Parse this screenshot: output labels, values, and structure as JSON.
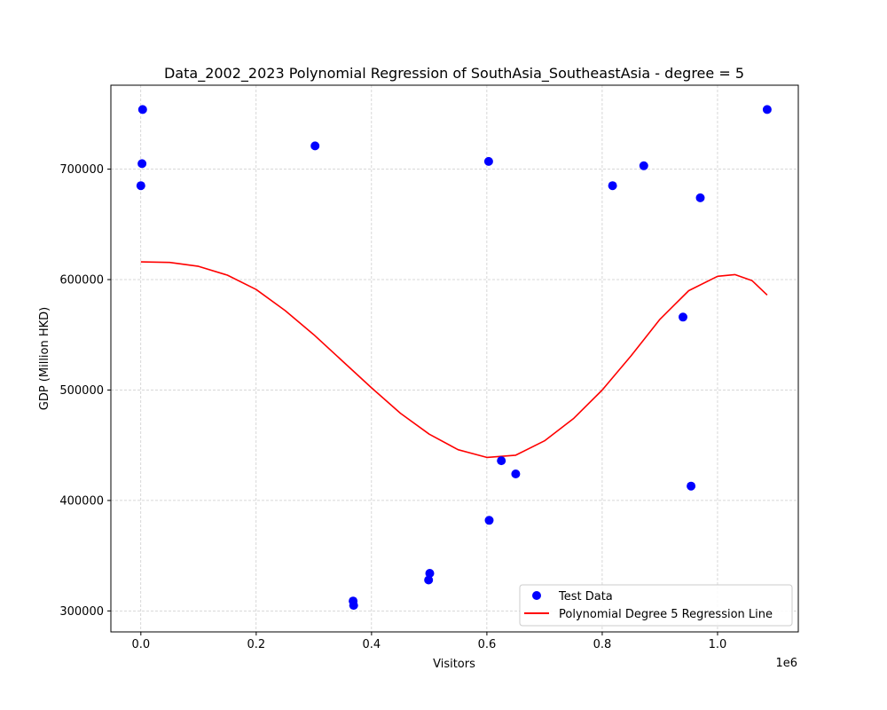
{
  "chart_data": {
    "type": "scatter",
    "title": "Data_2002_2023 Polynomial Regression of SouthAsia_SoutheastAsia - degree = 5",
    "xlabel": "Visitors",
    "ylabel": "GDP (Million HKD)",
    "x_offset_label": "1e6",
    "xlim": [
      -52000,
      1140000
    ],
    "ylim": [
      281000,
      776000
    ],
    "x_ticks": [
      0,
      200000,
      400000,
      600000,
      800000,
      1000000
    ],
    "x_tick_labels": [
      "0.0",
      "0.2",
      "0.4",
      "0.6",
      "0.8",
      "1.0"
    ],
    "y_ticks": [
      300000,
      400000,
      500000,
      600000,
      700000
    ],
    "y_tick_labels": [
      "300000",
      "400000",
      "500000",
      "600000",
      "700000"
    ],
    "grid": true,
    "legend_position": "lower-right",
    "series": [
      {
        "name": "Test Data",
        "kind": "scatter",
        "color": "#0000ff",
        "points": [
          {
            "x": 3000,
            "y": 754000
          },
          {
            "x": 2000,
            "y": 705000
          },
          {
            "x": 0,
            "y": 685000
          },
          {
            "x": 302000,
            "y": 721000
          },
          {
            "x": 603000,
            "y": 707000
          },
          {
            "x": 818000,
            "y": 685000
          },
          {
            "x": 872000,
            "y": 703000
          },
          {
            "x": 970000,
            "y": 674000
          },
          {
            "x": 1086000,
            "y": 754000
          },
          {
            "x": 940000,
            "y": 566000
          },
          {
            "x": 625000,
            "y": 436000
          },
          {
            "x": 650000,
            "y": 424000
          },
          {
            "x": 954000,
            "y": 413000
          },
          {
            "x": 604000,
            "y": 382000
          },
          {
            "x": 501000,
            "y": 334000
          },
          {
            "x": 499000,
            "y": 328000
          },
          {
            "x": 368000,
            "y": 309000
          },
          {
            "x": 369000,
            "y": 305000
          }
        ]
      },
      {
        "name": "Polynomial Degree 5 Regression Line",
        "kind": "line",
        "color": "#ff0000",
        "points": [
          {
            "x": 0,
            "y": 616000
          },
          {
            "x": 50000,
            "y": 615500
          },
          {
            "x": 100000,
            "y": 612000
          },
          {
            "x": 150000,
            "y": 604000
          },
          {
            "x": 200000,
            "y": 591000
          },
          {
            "x": 250000,
            "y": 572000
          },
          {
            "x": 300000,
            "y": 550000
          },
          {
            "x": 350000,
            "y": 526000
          },
          {
            "x": 400000,
            "y": 502000
          },
          {
            "x": 450000,
            "y": 479000
          },
          {
            "x": 500000,
            "y": 460000
          },
          {
            "x": 550000,
            "y": 446000
          },
          {
            "x": 600000,
            "y": 439000
          },
          {
            "x": 650000,
            "y": 441000
          },
          {
            "x": 700000,
            "y": 454000
          },
          {
            "x": 750000,
            "y": 474000
          },
          {
            "x": 800000,
            "y": 500000
          },
          {
            "x": 850000,
            "y": 531000
          },
          {
            "x": 900000,
            "y": 564000
          },
          {
            "x": 950000,
            "y": 590000
          },
          {
            "x": 1000000,
            "y": 603000
          },
          {
            "x": 1030000,
            "y": 604500
          },
          {
            "x": 1060000,
            "y": 599000
          },
          {
            "x": 1086000,
            "y": 586000
          }
        ]
      }
    ]
  }
}
